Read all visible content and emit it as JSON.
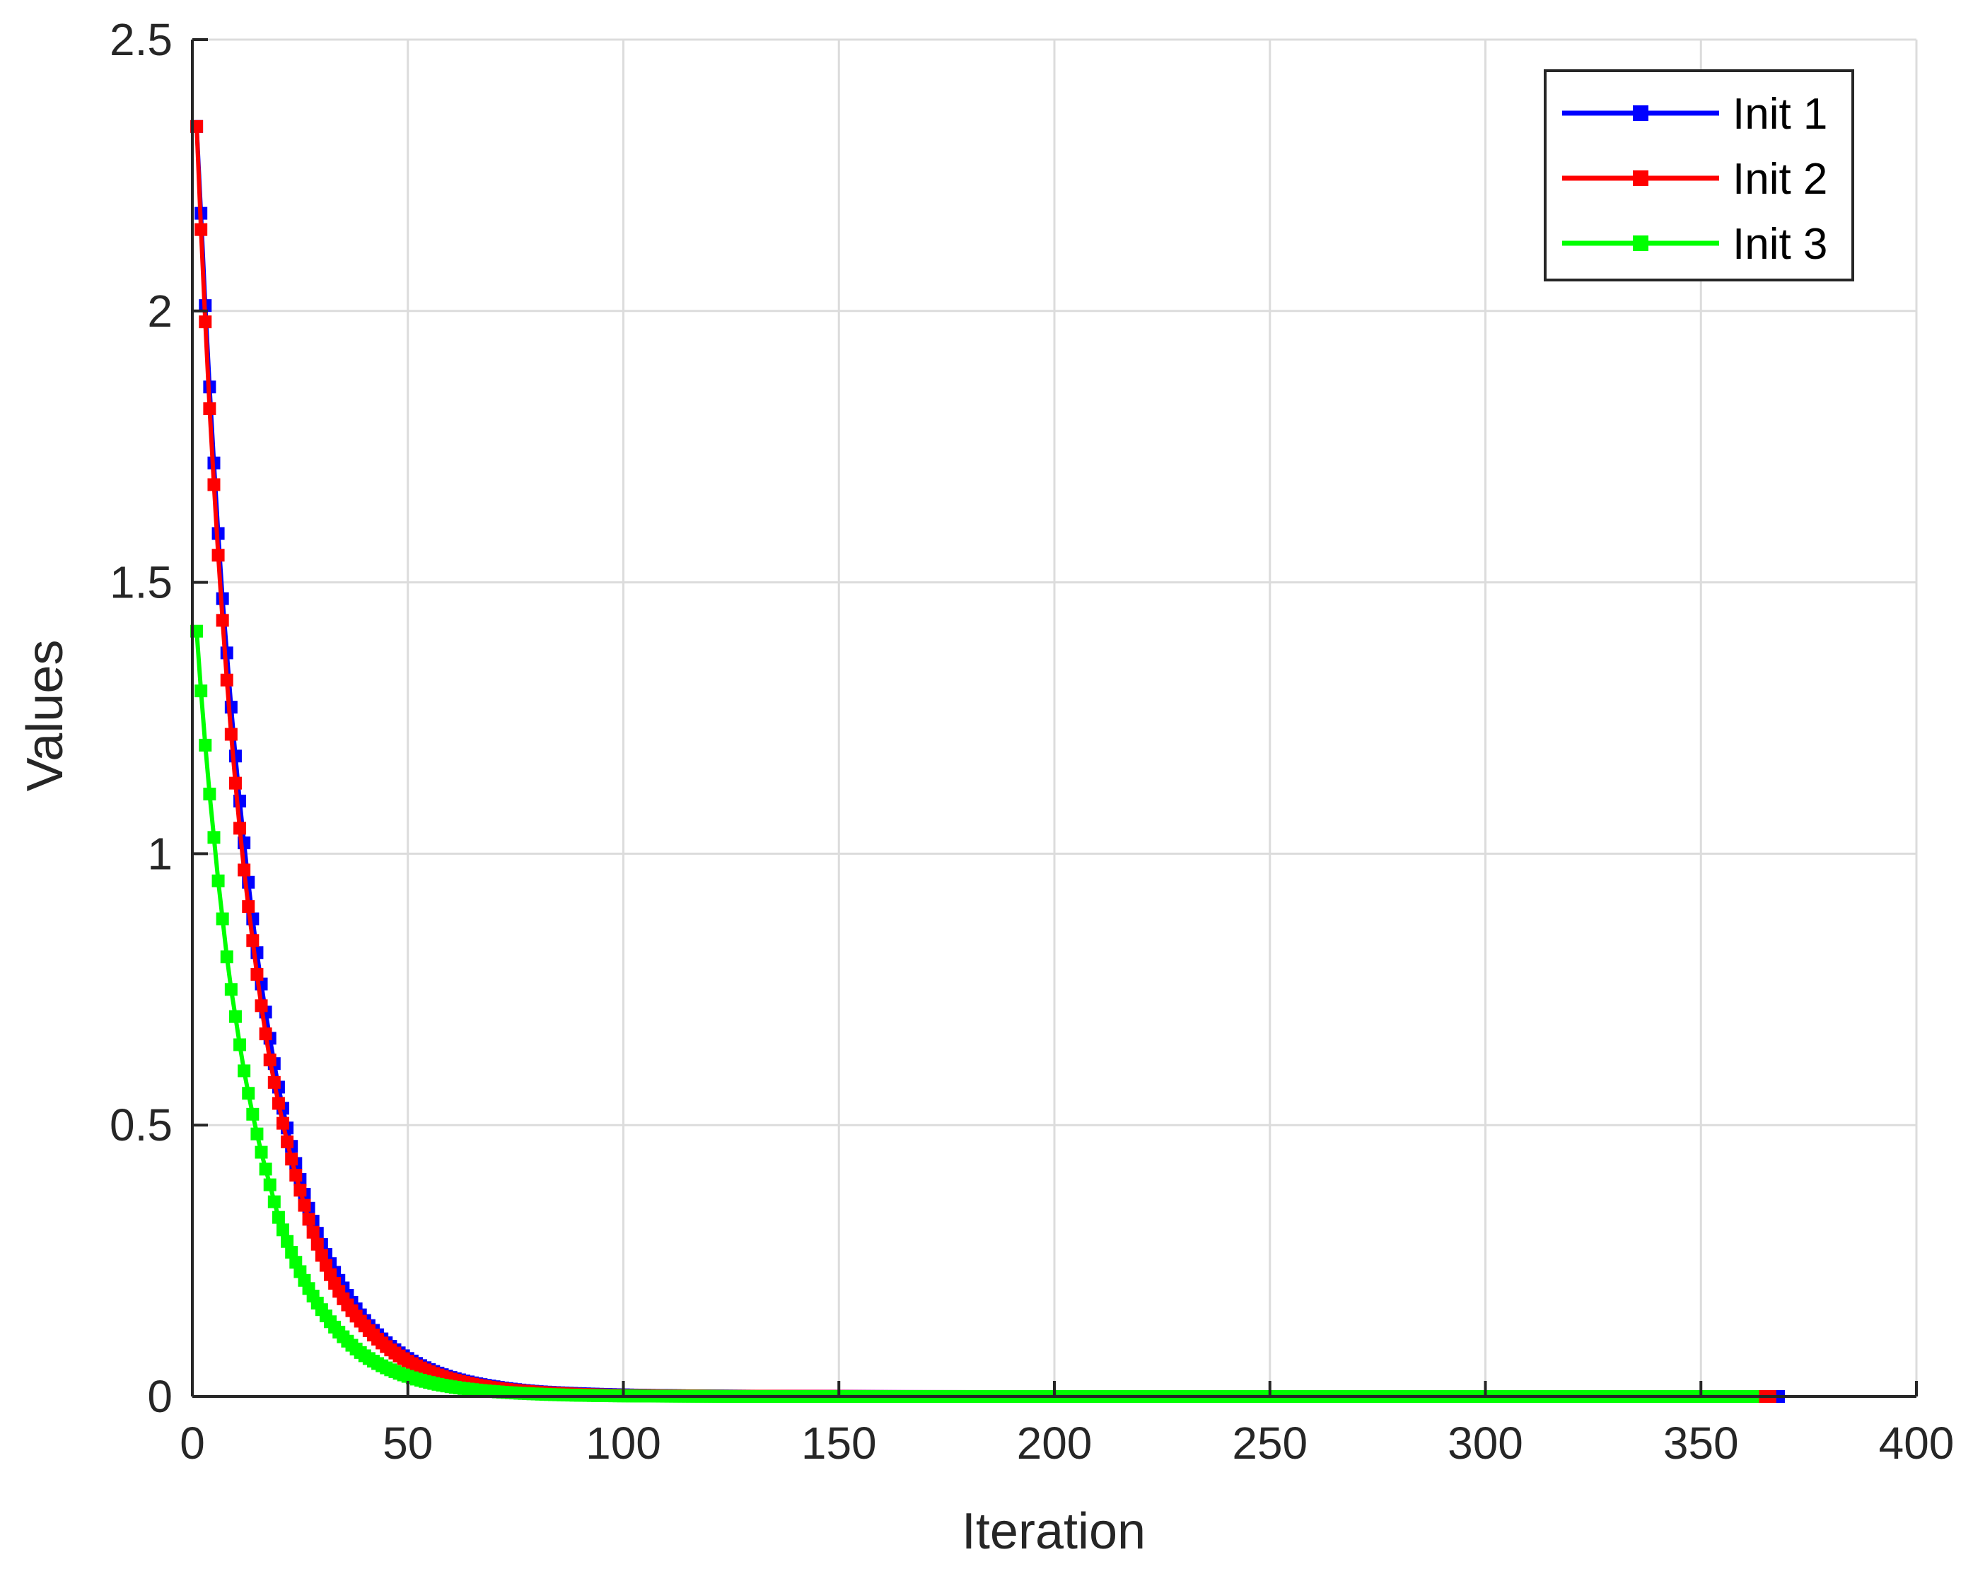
{
  "chart_data": {
    "type": "line",
    "title": "",
    "xlabel": "Iteration",
    "ylabel": "Values",
    "xlim": [
      0,
      400
    ],
    "ylim": [
      0,
      2.5
    ],
    "xticks": [
      0,
      50,
      100,
      150,
      200,
      250,
      300,
      350,
      400
    ],
    "xtick_labels": [
      "0",
      "50",
      "100",
      "150",
      "200",
      "250",
      "300",
      "350",
      "400"
    ],
    "yticks": [
      0,
      0.5,
      1,
      1.5,
      2,
      2.5
    ],
    "ytick_labels": [
      "0",
      "0.5",
      "1",
      "1.5",
      "2",
      "2.5"
    ],
    "grid": true,
    "legend_position": "top-right",
    "series": [
      {
        "name": "Init 1",
        "color": "#0000ff",
        "marker": "square",
        "num_points": 368,
        "x": [
          1,
          2,
          3,
          4,
          5,
          6,
          7,
          8,
          9,
          10,
          12,
          14,
          16,
          18,
          20,
          25,
          30,
          35,
          40,
          50,
          60,
          70,
          80,
          100,
          120,
          150,
          200,
          250,
          300,
          368
        ],
        "y": [
          2.34,
          2.18,
          2.01,
          1.86,
          1.72,
          1.59,
          1.47,
          1.37,
          1.27,
          1.18,
          1.02,
          0.88,
          0.76,
          0.66,
          0.57,
          0.4,
          0.28,
          0.2,
          0.14,
          0.07,
          0.035,
          0.018,
          0.009,
          0.003,
          0.001,
          0.0003,
          0.0,
          0.0,
          0.0,
          0.0
        ]
      },
      {
        "name": "Init 2",
        "color": "#ff0000",
        "marker": "square",
        "num_points": 366,
        "x": [
          1,
          2,
          3,
          4,
          5,
          6,
          7,
          8,
          9,
          10,
          12,
          14,
          16,
          18,
          20,
          25,
          30,
          35,
          40,
          50,
          60,
          70,
          80,
          100,
          120,
          150,
          200,
          250,
          300,
          366
        ],
        "y": [
          2.34,
          2.15,
          1.98,
          1.82,
          1.68,
          1.55,
          1.43,
          1.32,
          1.22,
          1.13,
          0.97,
          0.84,
          0.72,
          0.62,
          0.54,
          0.38,
          0.26,
          0.18,
          0.13,
          0.065,
          0.032,
          0.016,
          0.008,
          0.002,
          0.0008,
          0.0002,
          0.0,
          0.0,
          0.0,
          0.0
        ]
      },
      {
        "name": "Init 3",
        "color": "#00ff00",
        "marker": "square",
        "num_points": 362,
        "x": [
          1,
          2,
          3,
          4,
          5,
          6,
          7,
          8,
          9,
          10,
          12,
          14,
          16,
          18,
          20,
          25,
          30,
          35,
          40,
          50,
          60,
          70,
          80,
          100,
          120,
          150,
          200,
          250,
          300,
          362
        ],
        "y": [
          1.41,
          1.3,
          1.2,
          1.11,
          1.03,
          0.95,
          0.88,
          0.81,
          0.75,
          0.7,
          0.6,
          0.52,
          0.45,
          0.39,
          0.33,
          0.23,
          0.16,
          0.11,
          0.075,
          0.037,
          0.018,
          0.009,
          0.0045,
          0.001,
          0.0003,
          0.0,
          0.0,
          0.0,
          0.0,
          0.0
        ]
      }
    ]
  }
}
